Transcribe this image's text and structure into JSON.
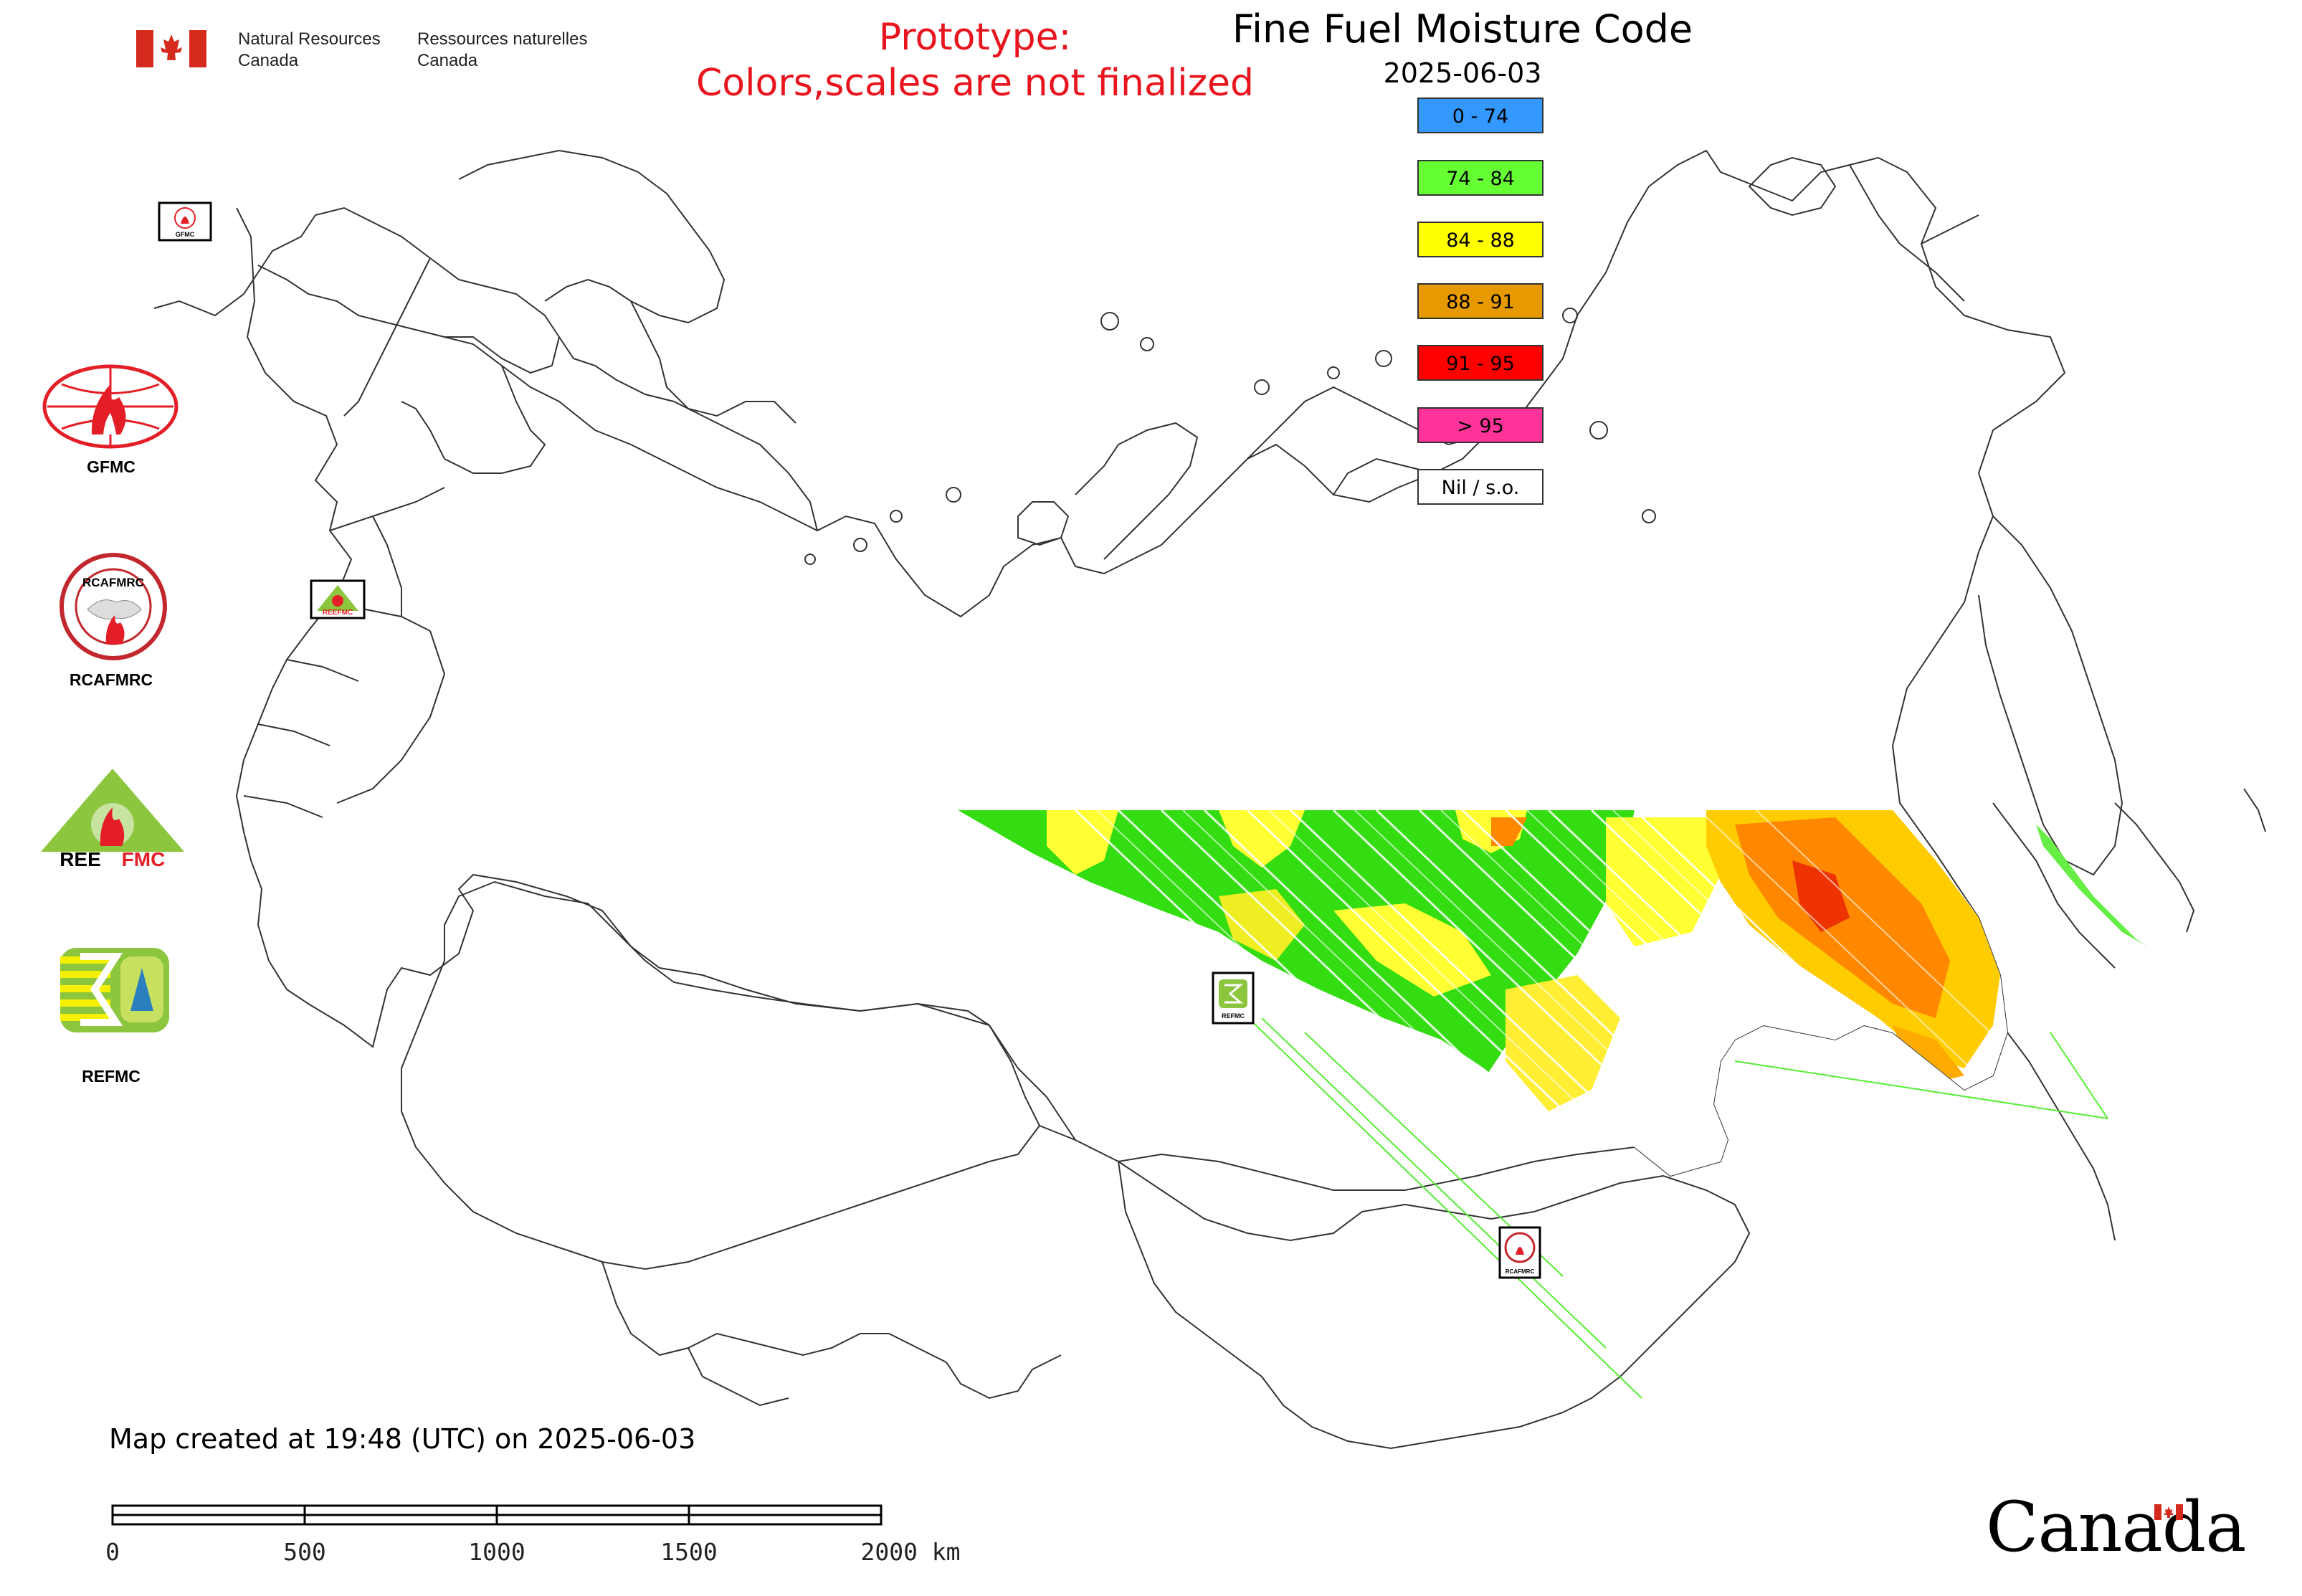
{
  "header": {
    "gov_en_line1": "Natural Resources",
    "gov_en_line2": "Canada",
    "gov_fr_line1": "Ressources naturelles",
    "gov_fr_line2": "Canada",
    "prototype_line1": "Prototype:",
    "prototype_line2": "Colors,scales are not finalized",
    "title": "Fine Fuel Moisture Code",
    "date": "2025-06-03"
  },
  "legend": [
    {
      "label": "0 - 74",
      "color": "#3399ff"
    },
    {
      "label": "74 - 84",
      "color": "#66ff33"
    },
    {
      "label": "84 - 88",
      "color": "#ffff00"
    },
    {
      "label": "88 - 91",
      "color": "#e69900"
    },
    {
      "label": "91 - 95",
      "color": "#ff0000"
    },
    {
      "label": "> 95",
      "color": "#ff3399"
    },
    {
      "label": "Nil / s.o.",
      "color": "#ffffff"
    }
  ],
  "side_logos": [
    {
      "label": "GFMC"
    },
    {
      "label": "RCAFMRC"
    },
    {
      "label": "REEFMC"
    },
    {
      "label": "REFMC"
    }
  ],
  "map_markers": [
    {
      "label": "GFMC"
    },
    {
      "label": "REEFMC"
    },
    {
      "label": "REFMC"
    },
    {
      "label": "RCAFMRC"
    }
  ],
  "footer": {
    "created": "Map created at 19:48 (UTC) on 2025-06-03",
    "scale_labels": [
      "0",
      "500",
      "1000",
      "1500",
      "2000 km"
    ],
    "wordmark": "Canada"
  },
  "colors": {
    "prototype_text": "#e8141e",
    "flag_red": "#d52b1e",
    "logo_red": "#e41e26",
    "logo_green": "#8cc63f"
  }
}
